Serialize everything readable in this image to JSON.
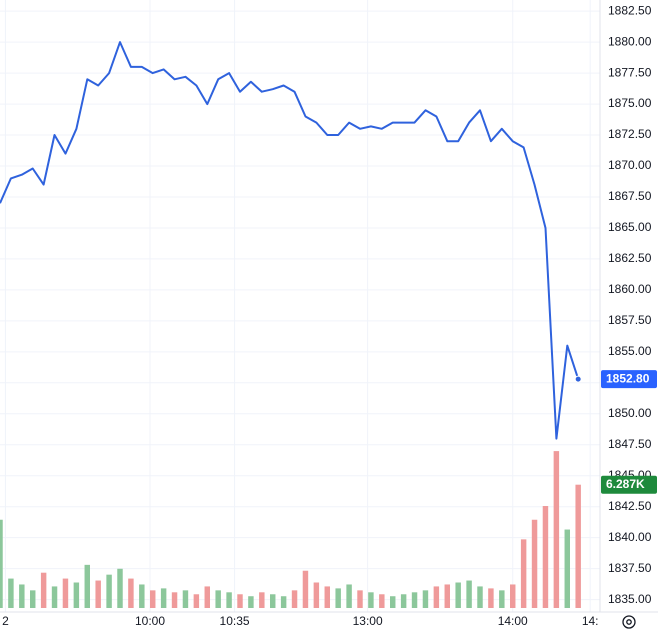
{
  "chart_data": {
    "type": "line",
    "x": [
      0,
      1,
      2,
      3,
      4,
      5,
      6,
      7,
      8,
      9,
      10,
      11,
      12,
      13,
      14,
      15,
      16,
      17,
      18,
      19,
      20,
      21,
      22,
      23,
      24,
      25,
      26,
      27,
      28,
      29,
      30,
      31,
      32,
      33,
      34,
      35,
      36,
      37,
      38,
      39,
      40,
      41,
      42,
      43,
      44,
      45,
      46,
      47,
      48,
      49,
      50,
      51,
      52,
      53
    ],
    "xlim": [
      0,
      55
    ],
    "xticks": [
      {
        "value": 0.5,
        "label": "2"
      },
      {
        "value": 13.75,
        "label": "10:00"
      },
      {
        "value": 21.5,
        "label": "10:35"
      },
      {
        "value": 33.7,
        "label": "13:00"
      },
      {
        "value": 47,
        "label": "14:00"
      },
      {
        "value": 54.1,
        "label": "14:"
      }
    ],
    "ylim": [
      1834,
      1883.4
    ],
    "yticks": [
      {
        "value": 1835,
        "label": "1835.00"
      },
      {
        "value": 1837.5,
        "label": "1837.50"
      },
      {
        "value": 1840,
        "label": "1840.00"
      },
      {
        "value": 1842.5,
        "label": "1842.50"
      },
      {
        "value": 1845,
        "label": "1845.00"
      },
      {
        "value": 1847.5,
        "label": "1847.50"
      },
      {
        "value": 1850,
        "label": "1850.00"
      },
      {
        "value": 1852.5,
        "label": "1852.50"
      },
      {
        "value": 1855,
        "label": "1855.00"
      },
      {
        "value": 1857.5,
        "label": "1857.50"
      },
      {
        "value": 1860,
        "label": "1860.00"
      },
      {
        "value": 1862.5,
        "label": "1862.50"
      },
      {
        "value": 1865,
        "label": "1865.00"
      },
      {
        "value": 1867.5,
        "label": "1867.50"
      },
      {
        "value": 1870,
        "label": "1870.00"
      },
      {
        "value": 1872.5,
        "label": "1872.50"
      },
      {
        "value": 1875,
        "label": "1875.00"
      },
      {
        "value": 1877.5,
        "label": "1877.50"
      },
      {
        "value": 1880,
        "label": "1880.00"
      },
      {
        "value": 1882.5,
        "label": "1882.50"
      }
    ],
    "grid": true,
    "series": [
      {
        "color": "#2f62dd",
        "values": [
          1867,
          1869,
          1869.3,
          1869.8,
          1868.5,
          1872.5,
          1871,
          1873,
          1877,
          1876.5,
          1877.5,
          1880,
          1878,
          1878,
          1877.5,
          1877.8,
          1877,
          1877.2,
          1876.5,
          1875,
          1877,
          1877.5,
          1876,
          1876.8,
          1876,
          1876.2,
          1876.5,
          1876,
          1874,
          1873.5,
          1872.5,
          1872.5,
          1873.5,
          1873,
          1873.2,
          1873,
          1873.5,
          1873.5,
          1873.5,
          1874.5,
          1874,
          1872,
          1872,
          1873.5,
          1874.5,
          1872,
          1873,
          1872,
          1871.5,
          1868.5,
          1865,
          1848,
          1855.5,
          1852.8
        ]
      }
    ],
    "volume": {
      "values": [
        4500,
        1500,
        1200,
        900,
        1800,
        1100,
        1500,
        1300,
        2200,
        1400,
        1700,
        2000,
        1500,
        1200,
        900,
        1000,
        800,
        900,
        700,
        1100,
        900,
        800,
        700,
        600,
        800,
        700,
        600,
        900,
        1900,
        1300,
        1100,
        1000,
        1200,
        900,
        800,
        700,
        600,
        700,
        800,
        900,
        1100,
        1200,
        1300,
        1400,
        1100,
        1000,
        900,
        1200,
        3500,
        4500,
        5200,
        8000,
        4000,
        6287
      ],
      "lim": [
        0,
        31000
      ],
      "up_color": "#8cc79b",
      "down_color": "#ef9a9a"
    },
    "last_price": {
      "value": 1852.8,
      "label": "1852.80",
      "color": "#2962ff"
    },
    "last_volume": {
      "value": 6287,
      "label": "6.287K",
      "color": "#1e8a3c"
    }
  }
}
